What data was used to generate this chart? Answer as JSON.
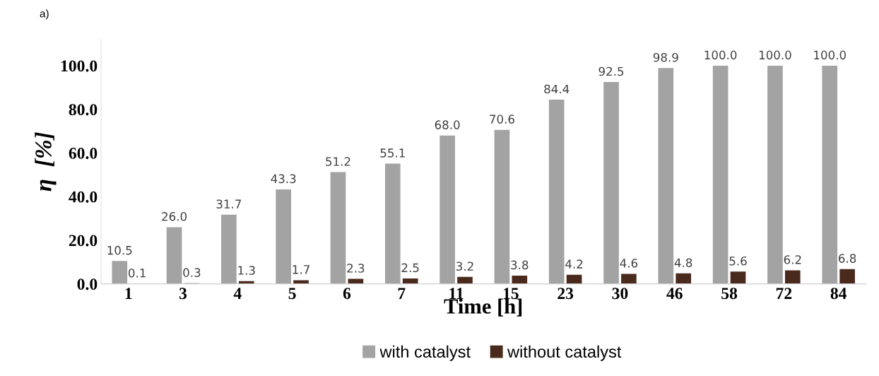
{
  "chart_data": {
    "type": "bar",
    "annotations": [
      "a)"
    ],
    "xlabel": "Time [h]",
    "ylabel": "η  [%]",
    "categories": [
      "1",
      "3",
      "4",
      "5",
      "6",
      "7",
      "11",
      "15",
      "23",
      "30",
      "46",
      "58",
      "72",
      "84"
    ],
    "series": [
      {
        "name": "with catalyst",
        "color": "#a3a3a3",
        "values": [
          10.5,
          26.0,
          31.7,
          43.3,
          51.2,
          55.1,
          68.0,
          70.6,
          84.4,
          92.5,
          98.9,
          100.0,
          100.0,
          100.0
        ],
        "value_labels": [
          "10.5",
          "26.0",
          "31.7",
          "43.3",
          "51.2",
          "55.1",
          "68.0",
          "70.6",
          "84.4",
          "92.5",
          "98.9",
          "100.0",
          "100.0",
          "100.0"
        ]
      },
      {
        "name": "without catalyst",
        "color": "#4a2a1c",
        "values": [
          0.1,
          0.3,
          1.3,
          1.7,
          2.3,
          2.5,
          3.2,
          3.8,
          4.2,
          4.6,
          4.8,
          5.6,
          6.2,
          6.8
        ],
        "value_labels": [
          "0.1",
          "0.3",
          "1.3",
          "1.7",
          "2.3",
          "2.5",
          "3.2",
          "3.8",
          "4.2",
          "4.6",
          "4.8",
          "5.6",
          "6.2",
          "6.8"
        ]
      }
    ],
    "ylim": [
      0,
      112
    ],
    "yticks": [
      {
        "value": 0,
        "label": "0.0"
      },
      {
        "value": 20,
        "label": "20.0"
      },
      {
        "value": 40,
        "label": "40.0"
      },
      {
        "value": 60,
        "label": "60.0"
      },
      {
        "value": 80,
        "label": "80.0"
      },
      {
        "value": 100,
        "label": "100.0"
      }
    ],
    "grid": false,
    "legend": "bottom"
  }
}
